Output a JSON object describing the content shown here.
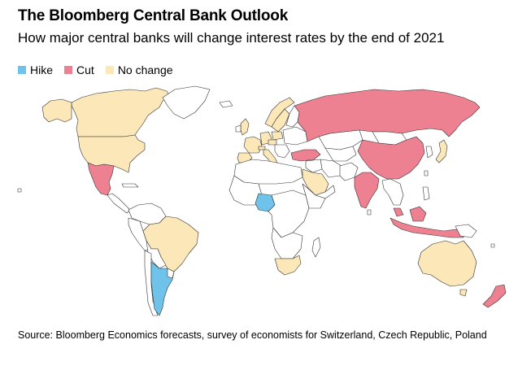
{
  "header": {
    "title": "The Bloomberg Central Bank Outlook",
    "subtitle": "How major central banks will change interest rates by the end of 2021"
  },
  "legend": {
    "items": [
      {
        "label": "Hike",
        "color": "#6fc3eb"
      },
      {
        "label": "Cut",
        "color": "#ee8191"
      },
      {
        "label": "No change",
        "color": "#fbe7b8"
      }
    ]
  },
  "map": {
    "colors": {
      "hike": "#6fc3eb",
      "cut": "#ee8191",
      "no_change": "#fbe7b8",
      "no_data": "#ffffff"
    }
  },
  "footer": {
    "source": "Source: Bloomberg Economics forecasts, survey of economists for Switzerland, Czech Republic, Poland"
  }
}
